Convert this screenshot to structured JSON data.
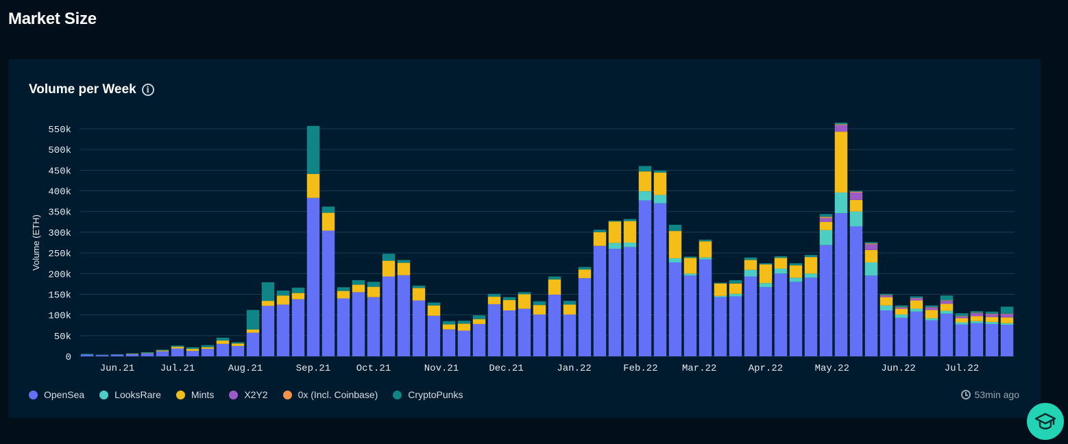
{
  "page": {
    "title": "Market Size"
  },
  "card": {
    "title": "Volume per Week",
    "updated": "53min ago"
  },
  "colors": {
    "background": "#020f1a",
    "card": "#001a2e",
    "grid": "#1c3a52",
    "help_button": "#22d3b4"
  },
  "legend": [
    {
      "name": "OpenSea",
      "color": "#6371f6"
    },
    {
      "name": "LooksRare",
      "color": "#4ecdc4"
    },
    {
      "name": "Mints",
      "color": "#f5bd17"
    },
    {
      "name": "X2Y2",
      "color": "#9b5bc4"
    },
    {
      "name": "0x (Incl. Coinbase)",
      "color": "#f5914a"
    },
    {
      "name": "CryptoPunks",
      "color": "#0f8585"
    }
  ],
  "icons": {
    "info": "info-icon",
    "clock": "clock-icon",
    "help": "graduation-cap-icon"
  },
  "chart_data": {
    "type": "bar",
    "stacked": true,
    "title": "Volume per Week",
    "ylabel": "Volume (ETH)",
    "ylim": [
      0,
      550000
    ],
    "yticks": [
      0,
      50000,
      100000,
      150000,
      200000,
      250000,
      300000,
      350000,
      400000,
      450000,
      500000,
      550000
    ],
    "ytick_labels": [
      "0",
      "50k",
      "100k",
      "150k",
      "200k",
      "250k",
      "300k",
      "350k",
      "400k",
      "450k",
      "500k",
      "550k"
    ],
    "x_tick_labels": [
      {
        "label": "Jun.21",
        "week": 2
      },
      {
        "label": "Jul.21",
        "week": 6
      },
      {
        "label": "Aug.21",
        "week": 10.5
      },
      {
        "label": "Sep.21",
        "week": 15
      },
      {
        "label": "Oct.21",
        "week": 19
      },
      {
        "label": "Nov.21",
        "week": 23.5
      },
      {
        "label": "Dec.21",
        "week": 27.8
      },
      {
        "label": "Jan.22",
        "week": 32.3
      },
      {
        "label": "Feb.22",
        "week": 36.7
      },
      {
        "label": "Mar.22",
        "week": 40.6
      },
      {
        "label": "Apr.22",
        "week": 45
      },
      {
        "label": "May.22",
        "week": 49.4
      },
      {
        "label": "Jun.22",
        "week": 53.8
      },
      {
        "label": "Jul.22",
        "week": 58
      }
    ],
    "grid": true,
    "legend_position": "bottom-left",
    "series": [
      {
        "name": "OpenSea",
        "color": "#6371f6",
        "values": [
          4000,
          3000,
          4000,
          5000,
          7000,
          12000,
          19000,
          13000,
          18000,
          30000,
          25000,
          57000,
          122000,
          125000,
          138000,
          383000,
          304000,
          140000,
          155000,
          143000,
          193000,
          196000,
          135000,
          98000,
          65000,
          62000,
          78000,
          126000,
          111000,
          115000,
          101000,
          149000,
          101000,
          189000,
          267000,
          260000,
          264000,
          377000,
          370000,
          227000,
          195000,
          234000,
          143000,
          145000,
          193000,
          167000,
          200000,
          180000,
          190000,
          269000,
          346000,
          314000,
          195000,
          111000,
          93000,
          108000,
          87000,
          103000,
          77000,
          80000,
          78000,
          76000
        ]
      },
      {
        "name": "LooksRare",
        "color": "#4ecdc4",
        "values": [
          0,
          0,
          0,
          0,
          0,
          0,
          0,
          0,
          0,
          0,
          0,
          0,
          0,
          0,
          0,
          0,
          0,
          0,
          0,
          0,
          0,
          0,
          0,
          0,
          0,
          0,
          0,
          0,
          0,
          0,
          0,
          0,
          0,
          0,
          0,
          14000,
          11000,
          22000,
          20000,
          10000,
          5000,
          5000,
          3000,
          6000,
          16000,
          10000,
          12000,
          10000,
          10000,
          36000,
          50000,
          36000,
          32000,
          12000,
          8000,
          7000,
          5000,
          7000,
          5000,
          5000,
          5000,
          4000
        ]
      },
      {
        "name": "Mints",
        "color": "#f5bd17",
        "values": [
          0,
          0,
          0,
          1000,
          1000,
          2000,
          4000,
          5000,
          4000,
          8000,
          6000,
          8000,
          12000,
          22000,
          15000,
          58000,
          43000,
          18000,
          18000,
          25000,
          38000,
          30000,
          30000,
          25000,
          12000,
          17000,
          12000,
          18000,
          25000,
          35000,
          23000,
          37000,
          24000,
          21000,
          33000,
          52000,
          52000,
          48000,
          54000,
          66000,
          38000,
          39000,
          30000,
          25000,
          24000,
          45000,
          26000,
          30000,
          40000,
          20000,
          147000,
          28000,
          30000,
          20000,
          14000,
          20000,
          20000,
          17000,
          10000,
          12000,
          12000,
          14000
        ]
      },
      {
        "name": "X2Y2",
        "color": "#9b5bc4",
        "values": [
          0,
          0,
          0,
          0,
          0,
          0,
          0,
          0,
          0,
          0,
          0,
          0,
          0,
          0,
          0,
          0,
          0,
          0,
          0,
          0,
          0,
          0,
          0,
          0,
          0,
          0,
          0,
          0,
          0,
          0,
          0,
          0,
          0,
          0,
          0,
          0,
          0,
          0,
          0,
          0,
          0,
          0,
          0,
          0,
          0,
          0,
          0,
          0,
          0,
          9000,
          16000,
          18000,
          14000,
          4000,
          3000,
          5000,
          6000,
          7000,
          4000,
          7000,
          7000,
          8000
        ]
      },
      {
        "name": "0x (Incl. Coinbase)",
        "color": "#f5914a",
        "values": [
          0,
          0,
          0,
          0,
          0,
          0,
          0,
          0,
          0,
          0,
          0,
          0,
          0,
          0,
          0,
          0,
          0,
          0,
          0,
          0,
          0,
          0,
          0,
          0,
          0,
          0,
          0,
          0,
          0,
          0,
          0,
          0,
          0,
          0,
          0,
          0,
          0,
          0,
          0,
          0,
          0,
          0,
          0,
          0,
          0,
          0,
          0,
          0,
          0,
          3000,
          2000,
          2000,
          2000,
          1000,
          1000,
          1000,
          1000,
          1000,
          1000,
          1000,
          1000,
          1000
        ]
      },
      {
        "name": "CryptoPunks",
        "color": "#0f8585",
        "values": [
          2000,
          1000,
          1000,
          1000,
          2000,
          2000,
          3000,
          4000,
          5000,
          7000,
          3000,
          47000,
          45000,
          12000,
          13000,
          116000,
          15000,
          9000,
          11000,
          12000,
          17000,
          7000,
          6000,
          7000,
          8000,
          7000,
          9000,
          7000,
          7000,
          5000,
          9000,
          7000,
          9000,
          6000,
          6000,
          2000,
          5000,
          13000,
          5000,
          15000,
          3000,
          4000,
          2000,
          8000,
          6000,
          3000,
          4000,
          5000,
          5000,
          7000,
          4000,
          2000,
          3000,
          3000,
          4000,
          4000,
          4000,
          12000,
          7000,
          4000,
          5000,
          17000
        ]
      }
    ]
  }
}
